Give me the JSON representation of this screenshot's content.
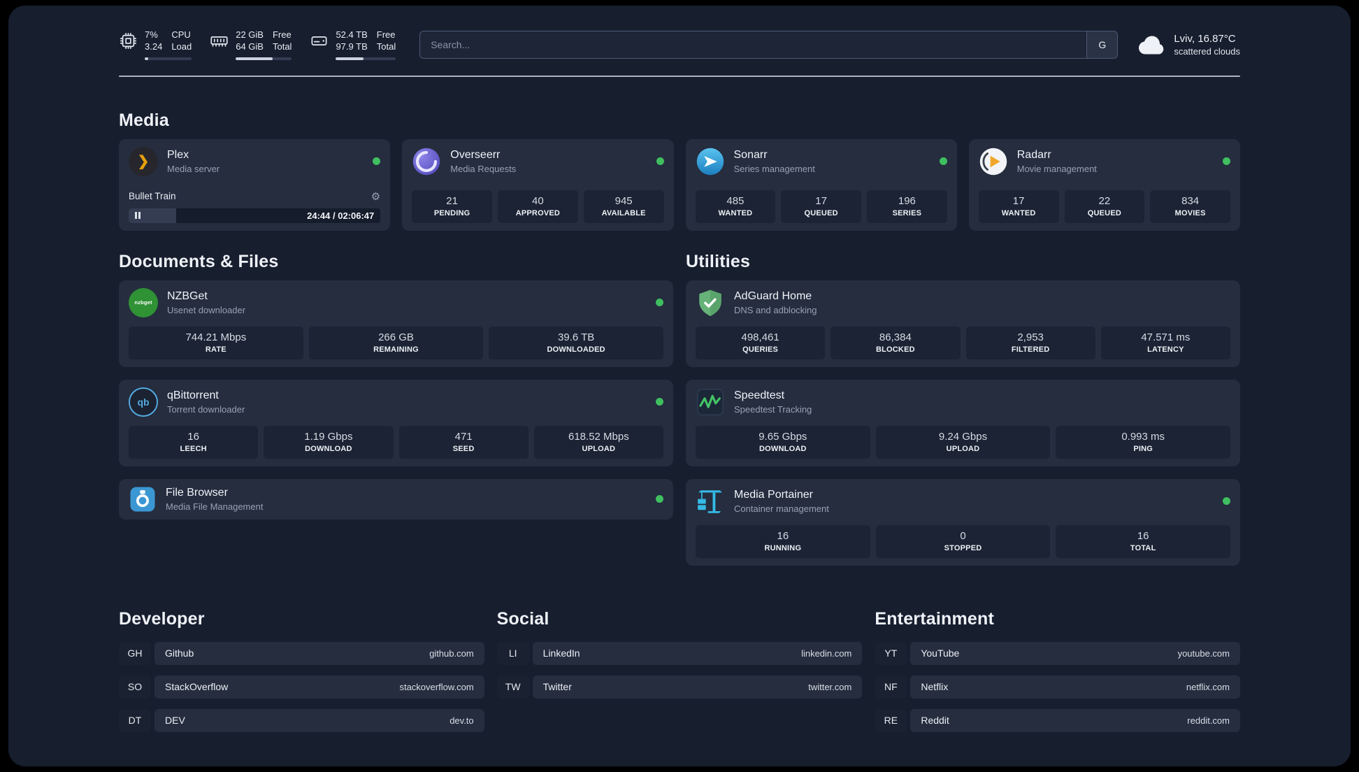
{
  "colors": {
    "status_green": "#3fbf5f",
    "plex_amber": "#e5a00d",
    "sonarr_blue": "#36a5dd",
    "radarr_amber": "#f0a729",
    "overseerr_purple": "#5f55cd",
    "nzbget_green": "#2f9235",
    "qbittorrent_blue": "#53a9e0",
    "filebrowser_blue": "#3b97d3",
    "adguard_green": "#67b279",
    "speedtest_green": "#45c467",
    "portainer_blue": "#35b9e6"
  },
  "glyphs": {
    "gear": "⚙",
    "plex_chevron": "❯"
  },
  "topbar": {
    "cpu": {
      "value_top": "7%",
      "value_bottom": "3.24",
      "label_top": "CPU",
      "label_bottom": "Load",
      "bar_percent": 7
    },
    "ram": {
      "value_top": "22 GiB",
      "value_bottom": "64 GiB",
      "label_top": "Free",
      "label_bottom": "Total",
      "bar_percent": 66
    },
    "disk": {
      "value_top": "52.4 TB",
      "value_bottom": "97.9 TB",
      "label_top": "Free",
      "label_bottom": "Total",
      "bar_percent": 46
    },
    "search": {
      "placeholder": "Search...",
      "engine_button": "G"
    },
    "weather": {
      "location": "Lviv, 16.87°C",
      "condition": "scattered clouds"
    }
  },
  "sections": {
    "media": {
      "title": "Media",
      "apps": [
        {
          "name": "Plex",
          "subtitle": "Media server",
          "status": "online",
          "player": {
            "title": "Bullet Train",
            "time": "24:44 / 02:06:47",
            "progress_percent": 19
          }
        },
        {
          "name": "Overseerr",
          "subtitle": "Media Requests",
          "status": "online",
          "stats": [
            {
              "value": "21",
              "label": "PENDING"
            },
            {
              "value": "40",
              "label": "APPROVED"
            },
            {
              "value": "945",
              "label": "AVAILABLE"
            }
          ]
        },
        {
          "name": "Sonarr",
          "subtitle": "Series management",
          "status": "online",
          "stats": [
            {
              "value": "485",
              "label": "WANTED"
            },
            {
              "value": "17",
              "label": "QUEUED"
            },
            {
              "value": "196",
              "label": "SERIES"
            }
          ]
        },
        {
          "name": "Radarr",
          "subtitle": "Movie management",
          "status": "online",
          "stats": [
            {
              "value": "17",
              "label": "WANTED"
            },
            {
              "value": "22",
              "label": "QUEUED"
            },
            {
              "value": "834",
              "label": "MOVIES"
            }
          ]
        }
      ]
    },
    "documents": {
      "title": "Documents & Files",
      "apps": [
        {
          "name": "NZBGet",
          "subtitle": "Usenet downloader",
          "status": "online",
          "icon_text": "nzbget",
          "stats": [
            {
              "value": "744.21 Mbps",
              "label": "RATE"
            },
            {
              "value": "266 GB",
              "label": "REMAINING"
            },
            {
              "value": "39.6 TB",
              "label": "DOWNLOADED"
            }
          ]
        },
        {
          "name": "qBittorrent",
          "subtitle": "Torrent downloader",
          "status": "online",
          "icon_text": "qb",
          "stats": [
            {
              "value": "16",
              "label": "LEECH"
            },
            {
              "value": "1.19 Gbps",
              "label": "DOWNLOAD"
            },
            {
              "value": "471",
              "label": "SEED"
            },
            {
              "value": "618.52 Mbps",
              "label": "UPLOAD"
            }
          ]
        },
        {
          "name": "File Browser",
          "subtitle": "Media File Management",
          "status": "online"
        }
      ]
    },
    "utilities": {
      "title": "Utilities",
      "apps": [
        {
          "name": "AdGuard Home",
          "subtitle": "DNS and adblocking",
          "stats": [
            {
              "value": "498,461",
              "label": "QUERIES"
            },
            {
              "value": "86,384",
              "label": "BLOCKED"
            },
            {
              "value": "2,953",
              "label": "FILTERED"
            },
            {
              "value": "47.571 ms",
              "label": "LATENCY"
            }
          ]
        },
        {
          "name": "Speedtest",
          "subtitle": "Speedtest Tracking",
          "stats": [
            {
              "value": "9.65 Gbps",
              "label": "DOWNLOAD"
            },
            {
              "value": "9.24 Gbps",
              "label": "UPLOAD"
            },
            {
              "value": "0.993 ms",
              "label": "PING"
            }
          ]
        },
        {
          "name": "Media Portainer",
          "subtitle": "Container management",
          "status": "online",
          "stats": [
            {
              "value": "16",
              "label": "RUNNING"
            },
            {
              "value": "0",
              "label": "STOPPED"
            },
            {
              "value": "16",
              "label": "TOTAL"
            }
          ]
        }
      ]
    },
    "developer": {
      "title": "Developer",
      "links": [
        {
          "abbrev": "GH",
          "name": "Github",
          "url": "github.com"
        },
        {
          "abbrev": "SO",
          "name": "StackOverflow",
          "url": "stackoverflow.com"
        },
        {
          "abbrev": "DT",
          "name": "DEV",
          "url": "dev.to"
        }
      ]
    },
    "social": {
      "title": "Social",
      "links": [
        {
          "abbrev": "LI",
          "name": "LinkedIn",
          "url": "linkedin.com"
        },
        {
          "abbrev": "TW",
          "name": "Twitter",
          "url": "twitter.com"
        }
      ]
    },
    "entertainment": {
      "title": "Entertainment",
      "links": [
        {
          "abbrev": "YT",
          "name": "YouTube",
          "url": "youtube.com"
        },
        {
          "abbrev": "NF",
          "name": "Netflix",
          "url": "netflix.com"
        },
        {
          "abbrev": "RE",
          "name": "Reddit",
          "url": "reddit.com"
        }
      ]
    }
  }
}
